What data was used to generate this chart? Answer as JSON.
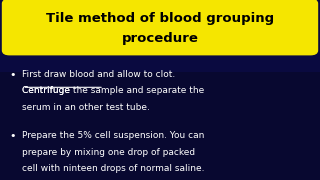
{
  "title_line1": "Tile method of blood grouping",
  "title_line2": "procedure",
  "title_bg": "#f5e600",
  "title_text_color": "#000000",
  "bg_color_top": "#0a0a3a",
  "bg_color_bottom": "#0a0550",
  "bullet1_normal": "First draw blood and allow to clot. ",
  "bullet1_underline": "Centrifuge ",
  "bullet1_rest": "the sample and separate the serum in an other test tube.",
  "bullet2": "Prepare the 5% cell suspension. You can prepare by mixing one drop of packed cell with ninteen drops of normal saline.",
  "bullet_color": "#ffffff",
  "figsize": [
    3.2,
    1.8
  ],
  "dpi": 100
}
